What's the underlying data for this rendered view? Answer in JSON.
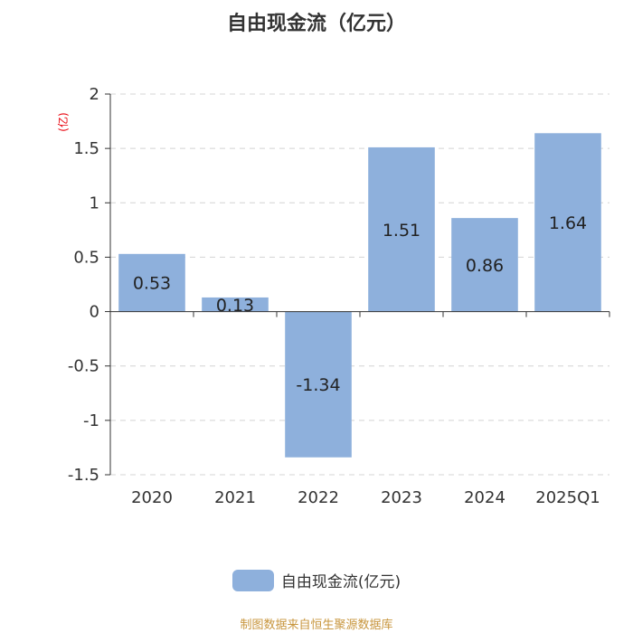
{
  "chart_data": {
    "type": "bar",
    "title": "自由现金流（亿元）",
    "ylabel": "(亿)",
    "categories": [
      "2020",
      "2021",
      "2022",
      "2023",
      "2024",
      "2025Q1"
    ],
    "series": [
      {
        "name": "自由现金流(亿元)",
        "values": [
          0.53,
          0.13,
          -1.34,
          1.51,
          0.86,
          1.64
        ]
      }
    ],
    "data_labels": [
      "0.53",
      "0.13",
      "-1.34",
      "1.51",
      "0.86",
      "1.64"
    ],
    "yticks": [
      2,
      1.5,
      1,
      0.5,
      0,
      -0.5,
      -1,
      -1.5
    ],
    "ytick_labels": [
      "2",
      "1.5",
      "1",
      "0.5",
      "0",
      "-0.5",
      "-1",
      "-1.5"
    ],
    "ylim": [
      -1.5,
      2
    ],
    "grid": true,
    "legend_position": "bottom",
    "bar_color": "#8eb0dc"
  },
  "footer": "制图数据来自恒生聚源数据库"
}
